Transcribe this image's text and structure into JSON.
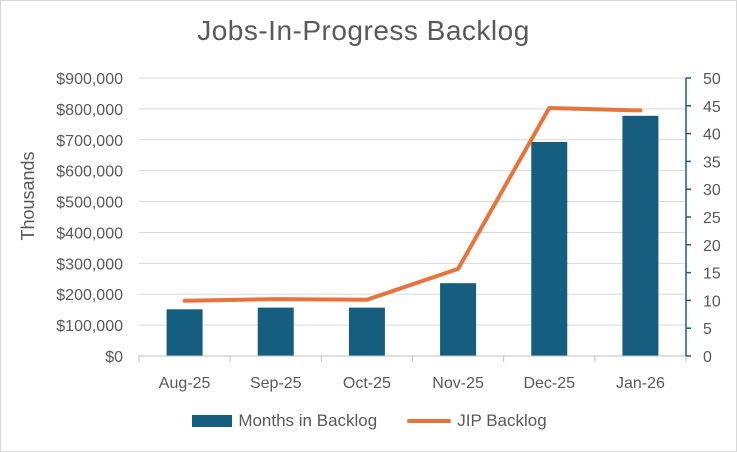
{
  "chart_data": {
    "type": "bar",
    "title": "Jobs-In-Progress Backlog",
    "categories": [
      "Aug-25",
      "Sep-25",
      "Oct-25",
      "Nov-25",
      "Dec-25",
      "Jan-26"
    ],
    "ylabel": "Thousands",
    "ylim": [
      0,
      900000
    ],
    "y_ticks": [
      "$900,000",
      "$800,000",
      "$700,000",
      "$600,000",
      "$500,000",
      "$400,000",
      "$300,000",
      "$200,000",
      "$100,000",
      "$0"
    ],
    "y2lim": [
      0,
      50
    ],
    "y2_ticks": [
      "50",
      "45",
      "40",
      "35",
      "30",
      "25",
      "20",
      "15",
      "10",
      "5",
      "0"
    ],
    "grid": true,
    "legend_position": "bottom",
    "series": [
      {
        "name": "Months in Backlog",
        "type": "bar",
        "axis": "right",
        "color": "#165e7f",
        "values": [
          8.4,
          8.7,
          8.7,
          13.1,
          38.5,
          43.2
        ]
      },
      {
        "name": "JIP Backlog",
        "type": "line",
        "axis": "left",
        "color": "#e8743b",
        "values": [
          179000,
          184000,
          182000,
          282000,
          803000,
          795000
        ]
      }
    ]
  }
}
